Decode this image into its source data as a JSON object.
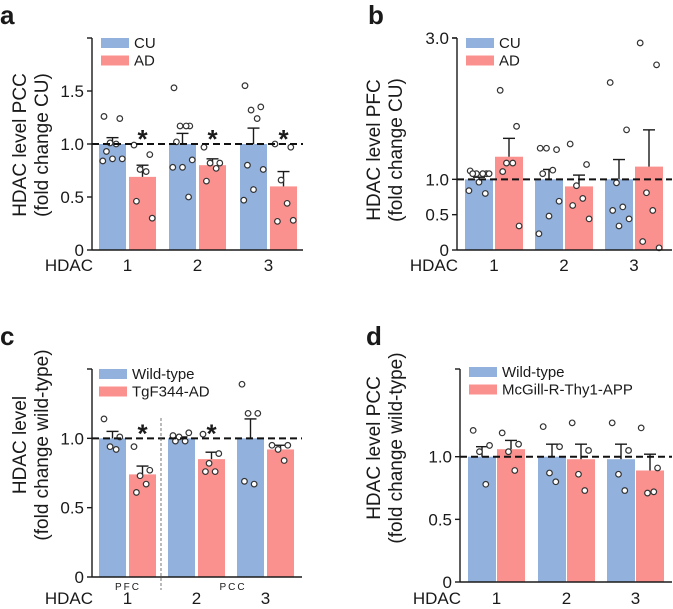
{
  "colors": {
    "control": "#92b1dc",
    "disease": "#fb918e",
    "axis": "#1a1a1a"
  },
  "chart_data": [
    {
      "panel": "a",
      "type": "bar",
      "title": "",
      "ylabel": [
        "HDAC level PCC",
        "(fold change CU)"
      ],
      "xlabel": "HDAC",
      "categories": [
        "1",
        "2",
        "3"
      ],
      "ylim": [
        0,
        2.0
      ],
      "yticks": [
        "0",
        "0.5",
        "1.0",
        "1.5"
      ],
      "ytick_values": [
        0,
        0.5,
        1.0,
        1.5
      ],
      "reference_line": 1.0,
      "legend_placement": "top-left",
      "significance": [
        "*",
        "*",
        "*"
      ],
      "series": [
        {
          "name": "CU",
          "values": [
            1.0,
            1.0,
            1.0
          ],
          "errors": [
            0.06,
            0.1,
            0.15
          ],
          "points": [
            [
              1.26,
              1.24,
              1.01,
              1.0,
              0.93,
              0.86,
              0.86,
              0.84
            ],
            [
              1.53,
              1.17,
              1.17,
              1.17,
              1.02,
              0.85,
              0.78,
              0.78,
              0.5
            ],
            [
              1.55,
              1.35,
              1.32,
              1.24,
              0.8,
              0.76,
              0.57,
              0.47
            ]
          ]
        },
        {
          "name": "AD",
          "values": [
            0.69,
            0.8,
            0.6
          ],
          "errors": [
            0.11,
            0.06,
            0.14
          ],
          "points": [
            [
              0.99,
              0.9,
              0.76,
              0.74,
              0.46,
              0.3
            ],
            [
              0.97,
              0.82,
              0.82,
              0.77,
              0.65
            ],
            [
              1.0,
              0.97,
              0.66,
              0.44,
              0.27,
              0.28
            ]
          ]
        }
      ]
    },
    {
      "panel": "b",
      "type": "bar",
      "title": "",
      "ylabel": [
        "HDAC level PFC",
        "(fold change CU)"
      ],
      "xlabel": "HDAC",
      "categories": [
        "1",
        "2",
        "3"
      ],
      "ylim": [
        0,
        3.0
      ],
      "yticks": [
        "0",
        "0.5",
        "1.0",
        "3.0"
      ],
      "ytick_values": [
        0,
        0.5,
        1.0,
        3.0
      ],
      "reference_line": 1.0,
      "legend_placement": "top-left",
      "significance": [
        "",
        "",
        ""
      ],
      "series": [
        {
          "name": "CU",
          "values": [
            1.0,
            1.0,
            1.0
          ],
          "errors": [
            0.03,
            0.14,
            0.28
          ],
          "points": [
            [
              1.12,
              1.08,
              1.08,
              1.08,
              1.08,
              1.08,
              0.96,
              0.84,
              0.8
            ],
            [
              1.44,
              1.42,
              1.44,
              1.13,
              1.08,
              0.69,
              0.48,
              0.23
            ],
            [
              2.37,
              1.7,
              0.95,
              0.61,
              0.56,
              0.44,
              0.34
            ]
          ]
        },
        {
          "name": "AD",
          "values": [
            1.32,
            0.9,
            1.18
          ],
          "errors": [
            0.26,
            0.16,
            0.52
          ],
          "points": [
            [
              2.26,
              1.75,
              1.23,
              1.23,
              1.11,
              0.34
            ],
            [
              1.5,
              1.21,
              0.91,
              0.73,
              0.63,
              0.44
            ],
            [
              2.93,
              2.62,
              0.81,
              0.56,
              0.12,
              0.03
            ]
          ]
        }
      ]
    },
    {
      "panel": "c",
      "type": "bar",
      "title": "",
      "ylabel": [
        "HDAC level",
        "(fold change wild-type)"
      ],
      "xlabel": "HDAC",
      "categories": [
        "1",
        "2",
        "3"
      ],
      "region_labels": [
        "PFC",
        "PCC"
      ],
      "ylim": [
        0,
        1.5
      ],
      "yticks": [
        "0",
        "0.5",
        "1.0"
      ],
      "ytick_values": [
        0,
        0.5,
        1.0
      ],
      "reference_line": 1.0,
      "legend_placement": "top-left",
      "significance": [
        "*",
        "*",
        ""
      ],
      "series": [
        {
          "name": "Wild-type",
          "values": [
            1.0,
            1.0,
            1.0
          ],
          "errors": [
            0.05,
            0.01,
            0.14
          ],
          "points": [
            [
              1.14,
              1.01,
              0.94,
              0.92
            ],
            [
              1.02,
              1.04,
              1.01,
              0.98,
              0.98
            ],
            [
              1.39,
              1.18,
              1.18,
              0.67,
              0.69
            ]
          ]
        },
        {
          "name": "TgF344-AD",
          "values": [
            0.74,
            0.85,
            0.92
          ],
          "errors": [
            0.06,
            0.05,
            0.03
          ],
          "points": [
            [
              0.94,
              0.77,
              0.73,
              0.67,
              0.61
            ],
            [
              1.03,
              0.89,
              0.82,
              0.76,
              0.76
            ],
            [
              0.95,
              0.95,
              0.92,
              0.84
            ]
          ]
        }
      ]
    },
    {
      "panel": "d",
      "type": "bar",
      "title": "",
      "ylabel": [
        "HDAC level PCC",
        "(fold change wild-type)"
      ],
      "xlabel": "HDAC",
      "categories": [
        "1",
        "2",
        "3"
      ],
      "ylim": [
        0,
        1.7
      ],
      "yticks": [
        "0",
        "0.5",
        "1.0"
      ],
      "ytick_values": [
        0,
        0.5,
        1.0
      ],
      "reference_line": 1.0,
      "legend_placement": "top-left",
      "significance": [
        "",
        "",
        ""
      ],
      "series": [
        {
          "name": "Wild-type",
          "values": [
            1.0,
            1.0,
            0.98
          ],
          "errors": [
            0.08,
            0.1,
            0.12
          ],
          "points": [
            [
              1.21,
              1.09,
              1.04,
              0.78
            ],
            [
              1.24,
              1.08,
              0.87,
              0.8
            ],
            [
              1.27,
              1.05,
              0.86,
              0.73
            ]
          ]
        },
        {
          "name": "McGill-R-Thy1-APP",
          "values": [
            1.06,
            0.98,
            0.89
          ],
          "errors": [
            0.07,
            0.12,
            0.13
          ],
          "points": [
            [
              1.19,
              1.1,
              1.04,
              0.89
            ],
            [
              1.27,
              1.05,
              0.86,
              0.73
            ],
            [
              1.23,
              0.91,
              0.71,
              0.72
            ]
          ]
        }
      ]
    }
  ]
}
